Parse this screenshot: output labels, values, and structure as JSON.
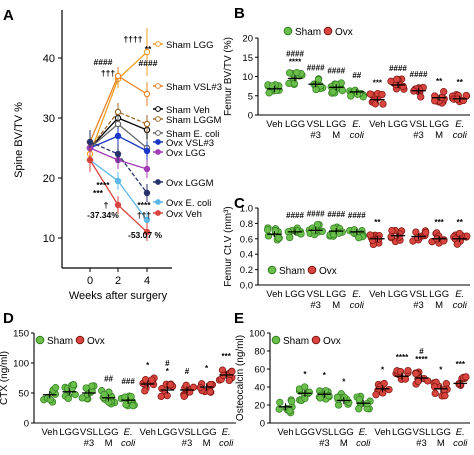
{
  "colors": {
    "sham": "#6abf4b",
    "sham_dark": "#2f7a1f",
    "ovx": "#d9453e",
    "ovx_dark": "#7a1410",
    "lgg": "#f0a020",
    "vsl": "#e8852a",
    "veh": "#000000",
    "lggm": "#9e6a2a",
    "ecoli": "#5bb8e8",
    "ovx_vsl": "#1a35c8",
    "ovx_lgg": "#a23bb5",
    "ovx_lggm": "#27336b"
  },
  "chart_data": [
    {
      "panel": "A",
      "type": "line",
      "xlabel": "Weeks after surgery",
      "ylabel": "Spine BV/TV %",
      "x": [
        0,
        2,
        4
      ],
      "xticks": [
        "0",
        "2",
        "4"
      ],
      "ylim": [
        5,
        48
      ],
      "yticks": [
        10,
        20,
        30,
        40
      ],
      "series": [
        {
          "name": "Sham LGG",
          "color": "#f0a020",
          "values": [
            24,
            36.5,
            41
          ],
          "err": [
            2.5,
            1.5,
            4
          ]
        },
        {
          "name": "Sham VSL#3",
          "color": "#e8852a",
          "values": [
            26,
            37,
            34
          ],
          "err": [
            2,
            1.5,
            2
          ]
        },
        {
          "name": "Sham Veh",
          "color": "#000000",
          "values": [
            25,
            30,
            28
          ],
          "err": [
            2,
            1.5,
            1.5
          ]
        },
        {
          "name": "Sham LGGM",
          "color": "#9e6a2a",
          "values": [
            25,
            31,
            29
          ],
          "err": [
            2,
            1.5,
            1.5
          ]
        },
        {
          "name": "Sham E. coli",
          "color": "#666666",
          "values": [
            25,
            29,
            25
          ],
          "err": [
            2,
            1.5,
            1.5
          ]
        },
        {
          "name": "Ovx VSL#3",
          "color": "#1a35c8",
          "values": [
            25,
            27,
            24.5
          ],
          "err": [
            2,
            1.5,
            1.5
          ]
        },
        {
          "name": "Ovx LGG",
          "color": "#a23bb5",
          "values": [
            25,
            23,
            21.5
          ],
          "err": [
            2,
            1.5,
            1.5
          ]
        },
        {
          "name": "Ovx LGGM",
          "color": "#27336b",
          "values": [
            26,
            24,
            17.5
          ],
          "err": [
            2,
            1.5,
            1.5
          ]
        },
        {
          "name": "Ovx E. coli",
          "color": "#5bb8e8",
          "values": [
            23,
            19.5,
            13
          ],
          "err": [
            2,
            1.5,
            1.5
          ]
        },
        {
          "name": "Ovx Veh",
          "color": "#d9453e",
          "values": [
            23,
            15.5,
            11
          ],
          "err": [
            2,
            1.5,
            1.5
          ]
        }
      ],
      "annotations": [
        "††††",
        "**",
        "####",
        "####",
        "†††",
        "****",
        "***",
        "†",
        "-37.34%",
        "****",
        "†††",
        "-53.07 %"
      ]
    },
    {
      "panel": "B",
      "type": "scatter",
      "ylabel": "Femur BV/TV (%)",
      "ylim": [
        0,
        20
      ],
      "yticks": [
        0,
        5,
        10,
        15,
        20
      ],
      "legend": [
        "Sham",
        "Ovx"
      ],
      "categories": [
        "Veh",
        "LGG",
        "VSL #3",
        "LGG M",
        "E. coli",
        "Veh",
        "LGG",
        "VSL #3",
        "LGG M",
        "E. coli"
      ],
      "groups": [
        "Sham",
        "Sham",
        "Sham",
        "Sham",
        "Sham",
        "Ovx",
        "Ovx",
        "Ovx",
        "Ovx",
        "Ovx"
      ],
      "means": [
        6.8,
        9.5,
        8.0,
        7.2,
        6.0,
        4.0,
        7.8,
        6.3,
        4.5,
        4.2
      ],
      "sig": [
        "",
        "####\n****",
        "####",
        "####",
        "##",
        "***",
        "####",
        "####",
        "**",
        "**"
      ]
    },
    {
      "panel": "C",
      "type": "scatter",
      "ylabel": "Femur Ct.V (mm³)",
      "ylim": [
        0,
        1.0
      ],
      "yticks": [
        0.0,
        0.2,
        0.4,
        0.6,
        0.8,
        1.0
      ],
      "legend": [
        "Sham",
        "Ovx"
      ],
      "categories": [
        "Veh",
        "LGG",
        "VSL #3",
        "LGG M",
        "E. coli",
        "Veh",
        "LGG",
        "VSL #3",
        "LGG M",
        "E. coli"
      ],
      "groups": [
        "Sham",
        "Sham",
        "Sham",
        "Sham",
        "Sham",
        "Ovx",
        "Ovx",
        "Ovx",
        "Ovx",
        "Ovx"
      ],
      "means": [
        0.66,
        0.69,
        0.71,
        0.7,
        0.69,
        0.6,
        0.64,
        0.63,
        0.6,
        0.6
      ],
      "sig": [
        "",
        "####",
        "####",
        "####",
        "####",
        "**",
        "",
        "",
        "***",
        "**"
      ]
    },
    {
      "panel": "D",
      "type": "scatter",
      "ylabel": "CTX (ng/ml)",
      "ylim": [
        0,
        150
      ],
      "yticks": [
        0,
        50,
        100,
        150
      ],
      "legend": [
        "Sham",
        "Ovx"
      ],
      "categories": [
        "Veh",
        "LGG",
        "VSL #3",
        "LGG M",
        "E. coli",
        "Veh",
        "LGG",
        "VSL #3",
        "LGG M",
        "E. coli"
      ],
      "groups": [
        "Sham",
        "Sham",
        "Sham",
        "Sham",
        "Sham",
        "Ovx",
        "Ovx",
        "Ovx",
        "Ovx",
        "Ovx"
      ],
      "means": [
        47,
        52,
        50,
        42,
        38,
        65,
        55,
        55,
        60,
        80
      ],
      "sig": [
        "",
        "",
        "",
        "##",
        "###",
        "*",
        "#\n*",
        "#",
        "*",
        "***"
      ]
    },
    {
      "panel": "E",
      "type": "scatter",
      "ylabel": "Osteocalcin (ng/ml)",
      "ylim": [
        0,
        100
      ],
      "yticks": [
        0,
        20,
        40,
        60,
        80,
        100
      ],
      "legend": [
        "Sham",
        "Ovx"
      ],
      "categories": [
        "Veh",
        "LGG",
        "VSL #3",
        "LGG M",
        "E. coli",
        "Veh",
        "LGG",
        "VSL #3",
        "LGG M",
        "E. coli"
      ],
      "groups": [
        "Sham",
        "Sham",
        "Sham",
        "Sham",
        "Sham",
        "Ovx",
        "Ovx",
        "Ovx",
        "Ovx",
        "Ovx"
      ],
      "means": [
        18,
        33,
        32,
        25,
        22,
        38,
        52,
        50,
        38,
        44
      ],
      "sig": [
        "",
        "*",
        "*",
        "*",
        "",
        "*",
        "****",
        "#\n****",
        "*",
        "***"
      ]
    }
  ]
}
